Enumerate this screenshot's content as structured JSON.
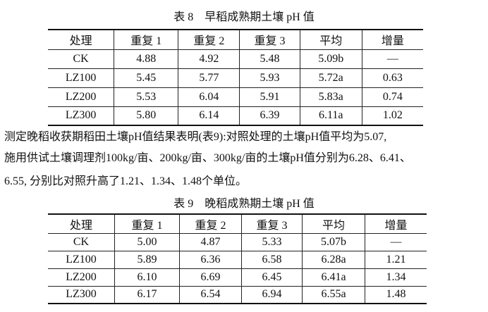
{
  "table8": {
    "caption": "表 8　早稻成熟期土壤 pH 值",
    "header": [
      "处理",
      "重复 1",
      "重复 2",
      "重复 3",
      "平均",
      "增量"
    ],
    "rows": [
      [
        "CK",
        "4.88",
        "4.92",
        "5.48",
        "5.09b",
        "—"
      ],
      [
        "LZ100",
        "5.45",
        "5.77",
        "5.93",
        "5.72a",
        "0.63"
      ],
      [
        "LZ200",
        "5.53",
        "6.04",
        "5.91",
        "5.83a",
        "0.74"
      ],
      [
        "LZ300",
        "5.80",
        "6.14",
        "6.39",
        "6.11a",
        "1.02"
      ]
    ]
  },
  "paragraph": {
    "lines": [
      "测定晚稻收获期稻田土壤pH值结果表明(表9):对照处理的土壤pH值平均为5.07,",
      "施用供试土壤调理剂100kg/亩、200kg/亩、300kg/亩的土壤pH值分别为6.28、6.41、",
      "6.55, 分别比对照升高了1.21、1.34、1.48个单位。"
    ]
  },
  "table9": {
    "caption": "表 9　晚稻成熟期土壤 pH 值",
    "header": [
      "处理",
      "重复 1",
      "重复 2",
      "重复 3",
      "平均",
      "增量"
    ],
    "rows": [
      [
        "CK",
        "5.00",
        "4.87",
        "5.33",
        "5.07b",
        "—"
      ],
      [
        "LZ100",
        "5.89",
        "6.36",
        "6.58",
        "6.28a",
        "1.21"
      ],
      [
        "LZ200",
        "6.10",
        "6.69",
        "6.45",
        "6.41a",
        "1.34"
      ],
      [
        "LZ300",
        "6.17",
        "6.54",
        "6.94",
        "6.55a",
        "1.48"
      ]
    ]
  }
}
